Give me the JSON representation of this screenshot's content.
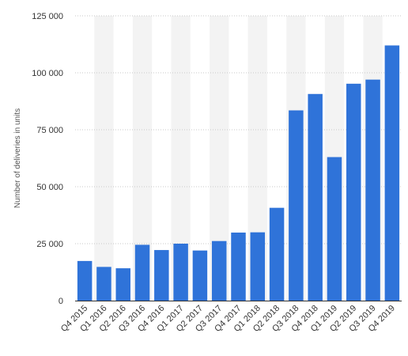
{
  "chart_data": {
    "type": "bar",
    "title": "",
    "xlabel": "",
    "ylabel": "Number of deliveries in units",
    "categories": [
      "Q4 2015",
      "Q1 2016",
      "Q2 2016",
      "Q3 2016",
      "Q4 2016",
      "Q1 2017",
      "Q2 2017",
      "Q3 2017",
      "Q4 2017",
      "Q1 2018",
      "Q2 2018",
      "Q3 2018",
      "Q4 2018",
      "Q1 2019",
      "Q2 2019",
      "Q3 2019",
      "Q4 2019"
    ],
    "values": [
      17400,
      14800,
      14200,
      24500,
      22200,
      25000,
      22000,
      26150,
      29870,
      29980,
      40740,
      83500,
      90700,
      63000,
      95200,
      97000,
      112000
    ],
    "ylim": [
      0,
      125000
    ],
    "yticks": [
      0,
      25000,
      50000,
      75000,
      100000,
      125000
    ],
    "ytick_labels": [
      "0",
      "25 000",
      "50 000",
      "75 000",
      "100 000",
      "125 000"
    ],
    "grid": true,
    "colors": {
      "bar": "#2f73d9",
      "band": "#f3f3f3",
      "grid": "#c8c8c8",
      "axis": "#333333"
    }
  }
}
